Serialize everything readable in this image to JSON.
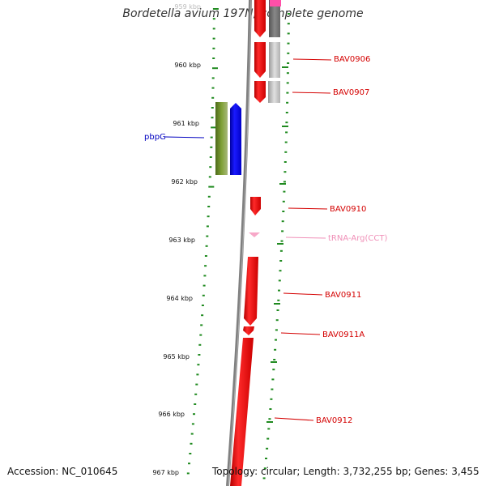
{
  "title": "Bordetella avium 197N, complete genome",
  "accession": "Accession: NC_010645",
  "summary": "Topology: circular; Length: 3,732,255 bp; Genes: 3,455",
  "scale_labels": [
    {
      "label": "959 kbp",
      "pos": 959
    },
    {
      "label": "960 kbp",
      "pos": 960
    },
    {
      "label": "961 kbp",
      "pos": 961
    },
    {
      "label": "962 kbp",
      "pos": 962
    },
    {
      "label": "963 kbp",
      "pos": 963
    },
    {
      "label": "964 kbp",
      "pos": 964
    },
    {
      "label": "965 kbp",
      "pos": 965
    },
    {
      "label": "966 kbp",
      "pos": 966
    },
    {
      "label": "967 kbp",
      "pos": 967
    }
  ],
  "gene_labels": [
    {
      "label": "BAV0906",
      "color": "#d40000"
    },
    {
      "label": "BAV0907",
      "color": "#d40000"
    },
    {
      "label": "pbpG",
      "color": "#0000c0"
    },
    {
      "label": "BAV0910",
      "color": "#d40000"
    },
    {
      "label": "tRNA-Arg(CCT)",
      "color": "#f090b8"
    },
    {
      "label": "BAV0911",
      "color": "#d40000"
    },
    {
      "label": "BAV0911A",
      "color": "#d40000"
    },
    {
      "label": "BAV0912",
      "color": "#d40000"
    }
  ],
  "colors": {
    "ruler_green": "#1f8a1f",
    "backbone": "#808080",
    "gene_red": "#ff0000",
    "gene_blue": "#0000ff",
    "gene_olive": "#6b8e23",
    "gene_gray": "#c0c0c0",
    "trna_pink": "#f7a8c8"
  }
}
